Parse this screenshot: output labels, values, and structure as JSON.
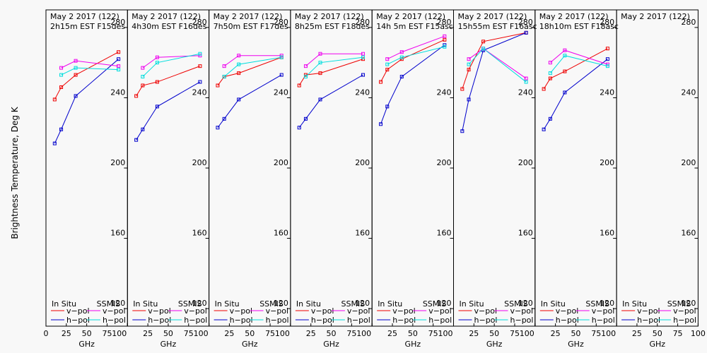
{
  "chart_data": {
    "type": "line",
    "ylabel": "Brightness Temperature, Deg K",
    "xlabel": "GHz",
    "ylim": [
      110,
      290
    ],
    "xlim": [
      0,
      100
    ],
    "yticks": [
      120,
      160,
      200,
      240,
      280
    ],
    "xticks": [
      0,
      25,
      50,
      75,
      100
    ],
    "xtick_labels_first": [
      "0",
      "25",
      "50",
      "75",
      "100"
    ],
    "xtick_labels": [
      "25",
      "50",
      "75",
      "100"
    ],
    "legend": {
      "insitu": "In Situ",
      "ssmis": "SSMIS",
      "vpol": "v−pol",
      "hpol": "h−pol"
    },
    "colors": {
      "insitu_v": "#ee0000",
      "insitu_h": "#0000cc",
      "ssmis_v": "#ee00ee",
      "ssmis_h": "#00dddd"
    },
    "frequencies": [
      10.7,
      18.7,
      36.5,
      89.0
    ],
    "panels": [
      {
        "date": "May 2 2017 (122)",
        "label": "2h15m EST F15des",
        "insitu_v": [
          239,
          246,
          253,
          266
        ],
        "insitu_h": [
          214,
          222,
          241,
          262
        ],
        "ssmis_v": [
          257,
          261,
          258
        ],
        "ssmis_h": [
          253,
          257,
          256
        ]
      },
      {
        "date": "May 2 2017 (122)",
        "label": "4h30m EST F16des",
        "insitu_v": [
          241,
          247,
          249,
          258
        ],
        "insitu_h": [
          216,
          222,
          235,
          249
        ],
        "ssmis_v": [
          257,
          263,
          264
        ],
        "ssmis_h": [
          252,
          260,
          265
        ]
      },
      {
        "date": "May 2 2017 (122)",
        "label": "7h50m EST F17des",
        "insitu_v": [
          247,
          252,
          254,
          263
        ],
        "insitu_h": [
          223,
          228,
          239,
          253
        ],
        "ssmis_v": [
          258,
          264,
          264
        ],
        "ssmis_h": [
          252,
          259,
          263
        ]
      },
      {
        "date": "May 2 2017 (122)",
        "label": "8h25m EST F18des",
        "insitu_v": [
          247,
          253,
          254,
          262
        ],
        "insitu_h": [
          223,
          228,
          239,
          253
        ],
        "ssmis_v": [
          258,
          265,
          265
        ],
        "ssmis_h": [
          252,
          260,
          263
        ]
      },
      {
        "date": "May 2 2017 (122)",
        "label": "14h 5m EST F15asc",
        "insitu_v": [
          249,
          256,
          262,
          273
        ],
        "insitu_h": [
          225,
          235,
          252,
          270
        ],
        "ssmis_v": [
          262,
          266,
          275
        ],
        "ssmis_h": [
          259,
          263,
          269
        ]
      },
      {
        "date": "May 2 2017 (122)",
        "label": "15h55m EST F16asc",
        "insitu_v": [
          245,
          256,
          272,
          277
        ],
        "insitu_h": [
          221,
          239,
          267,
          277
        ],
        "ssmis_v": [
          262,
          268,
          251
        ],
        "ssmis_h": [
          259,
          268,
          249
        ]
      },
      {
        "date": "May 2 2017 (122)",
        "label": "18h10m EST F18asc",
        "insitu_v": [
          245,
          251,
          255,
          268
        ],
        "insitu_h": [
          222,
          228,
          243,
          262
        ],
        "ssmis_v": [
          260,
          267,
          259
        ],
        "ssmis_h": [
          254,
          264,
          258
        ]
      },
      {
        "date": "May 2 2017 (122)",
        "label": "",
        "insitu_v": [],
        "insitu_h": [],
        "ssmis_v": [],
        "ssmis_h": []
      }
    ]
  }
}
